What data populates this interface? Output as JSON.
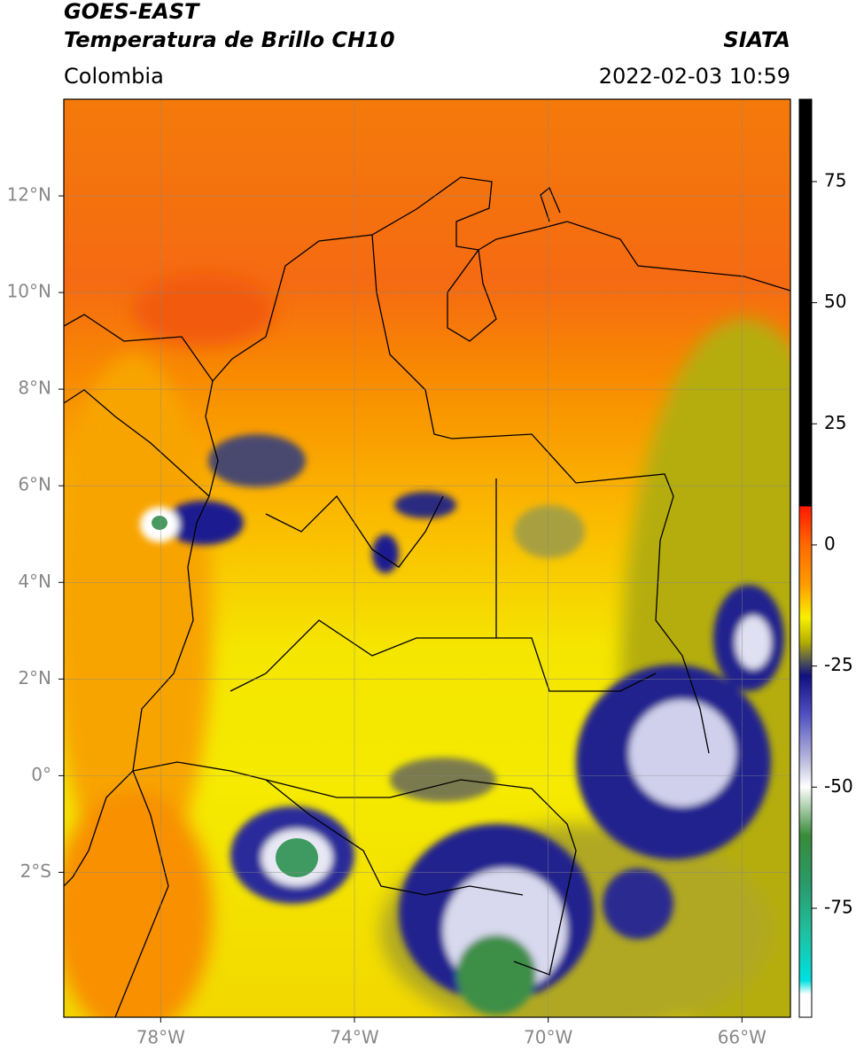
{
  "header": {
    "satellite": "GOES-EAST",
    "product": "Temperatura de Brillo CH10",
    "agency": "SIATA",
    "region": "Colombia",
    "datetime": "2022-02-03 10:59"
  },
  "map": {
    "xlim": [
      -80,
      -65
    ],
    "ylim": [
      -5,
      14
    ],
    "xticks": [
      {
        "value": -78,
        "label": "78°W"
      },
      {
        "value": -74,
        "label": "74°W"
      },
      {
        "value": -70,
        "label": "70°W"
      },
      {
        "value": -66,
        "label": "66°W"
      }
    ],
    "yticks": [
      {
        "value": 12,
        "label": "12°N"
      },
      {
        "value": 10,
        "label": "10°N"
      },
      {
        "value": 8,
        "label": "8°N"
      },
      {
        "value": 6,
        "label": "6°N"
      },
      {
        "value": 4,
        "label": "4°N"
      },
      {
        "value": 2,
        "label": "2°N"
      },
      {
        "value": 0,
        "label": "0°"
      },
      {
        "value": -2,
        "label": "2°S"
      }
    ],
    "grid": true
  },
  "colorbar": {
    "lim": [
      -97.5,
      92
    ],
    "ticks": [
      75,
      50,
      25,
      0,
      -25,
      -50,
      -75
    ]
  }
}
